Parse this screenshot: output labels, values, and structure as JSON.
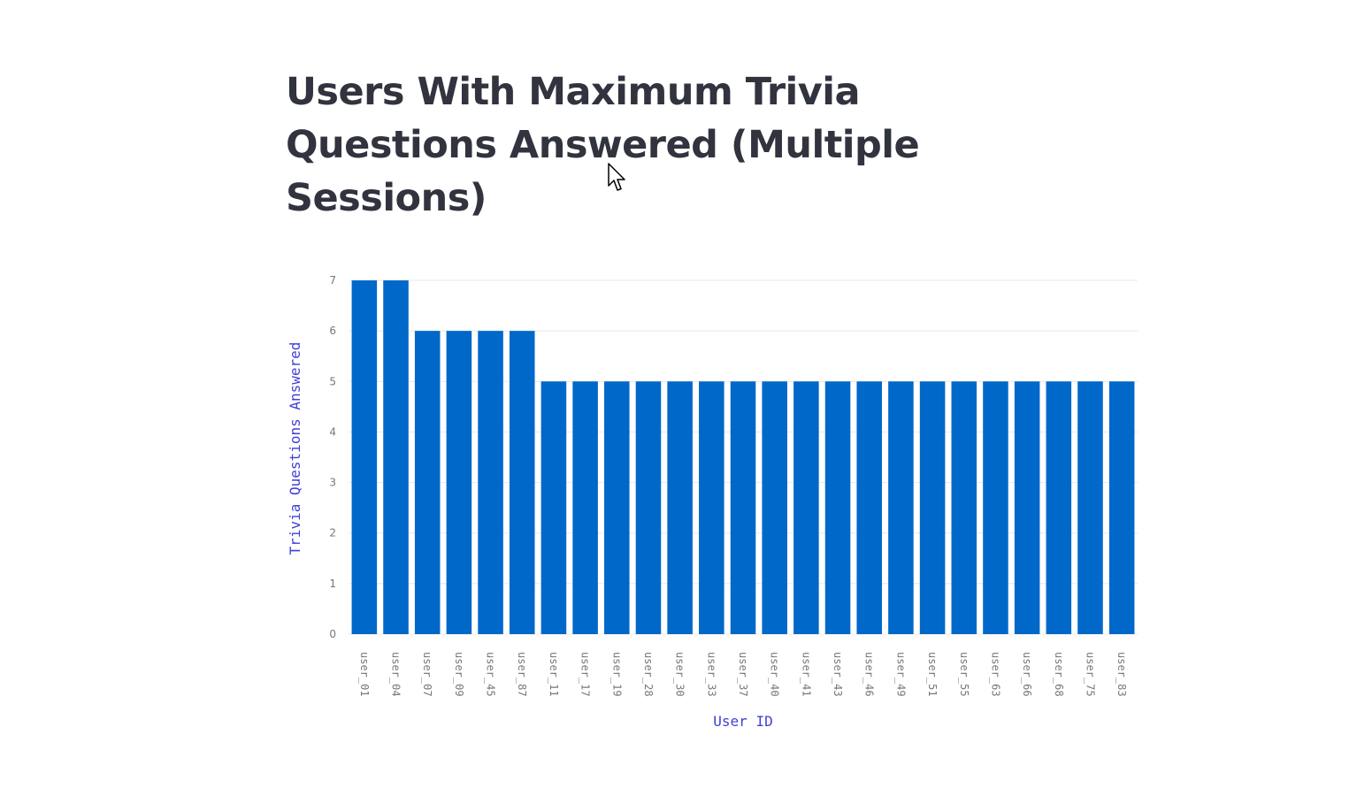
{
  "page": {
    "title": "Users With Maximum Trivia Questions Answered (Multiple Sessions)"
  },
  "colors": {
    "bar": "#0068c9",
    "title": "#31333f",
    "axis_title": "#3f3fd9",
    "tick": "#777777",
    "grid": "#e8e8e8"
  },
  "chart_data": {
    "type": "bar",
    "title": "",
    "xlabel": "User ID",
    "ylabel": "Trivia Questions Answered",
    "ylim": [
      0,
      7
    ],
    "yticks": [
      0,
      1,
      2,
      3,
      4,
      5,
      6,
      7
    ],
    "grid": true,
    "categories": [
      "user_01",
      "user_04",
      "user_07",
      "user_09",
      "user_45",
      "user_87",
      "user_11",
      "user_17",
      "user_19",
      "user_28",
      "user_30",
      "user_33",
      "user_37",
      "user_40",
      "user_41",
      "user_43",
      "user_46",
      "user_49",
      "user_51",
      "user_55",
      "user_63",
      "user_66",
      "user_68",
      "user_75",
      "user_83"
    ],
    "values": [
      7,
      7,
      6,
      6,
      6,
      6,
      5,
      5,
      5,
      5,
      5,
      5,
      5,
      5,
      5,
      5,
      5,
      5,
      5,
      5,
      5,
      5,
      5,
      5,
      5
    ]
  }
}
